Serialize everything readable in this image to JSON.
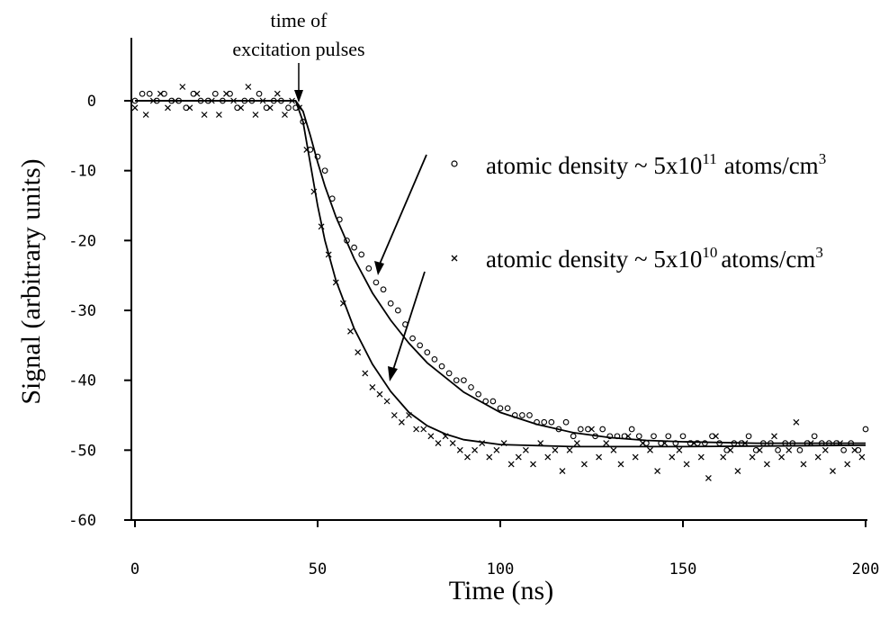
{
  "chart_data": {
    "type": "scatter",
    "title": "",
    "xlabel": "Time (ns)",
    "ylabel": "Signal (arbitrary units)",
    "xlim": [
      0,
      200
    ],
    "ylim": [
      -60,
      0
    ],
    "xticks": [
      "0",
      "50",
      "100",
      "150",
      "200"
    ],
    "yticks": [
      "0",
      "-10",
      "-20",
      "-30",
      "-40",
      "-50",
      "-60"
    ],
    "grid": false,
    "legend_position": "right",
    "annotation": {
      "line1": "time of",
      "line2": "excitation pulses",
      "x": 45,
      "y": 0
    },
    "legend": [
      {
        "marker": "circle",
        "base": "atomic density ~ 5x10",
        "exp": "11",
        "unit": "atoms/cm",
        "unit_exp": "3"
      },
      {
        "marker": "cross",
        "base": "atomic density ~ 5x10",
        "exp": "10",
        "unit": "atoms/cm",
        "unit_exp": "3"
      }
    ],
    "series": [
      {
        "marker": "circle",
        "x": [
          0,
          2,
          4,
          6,
          8,
          10,
          12,
          14,
          16,
          18,
          20,
          22,
          24,
          26,
          28,
          30,
          32,
          34,
          36,
          38,
          40,
          42,
          44,
          46,
          48,
          50,
          52,
          54,
          56,
          58,
          60,
          62,
          64,
          66,
          68,
          70,
          72,
          74,
          76,
          78,
          80,
          82,
          84,
          86,
          88,
          90,
          92,
          94,
          96,
          98,
          100,
          102,
          104,
          106,
          108,
          110,
          112,
          114,
          116,
          118,
          120,
          122,
          124,
          126,
          128,
          130,
          132,
          134,
          136,
          138,
          140,
          142,
          144,
          146,
          148,
          150,
          152,
          154,
          156,
          158,
          160,
          162,
          164,
          166,
          168,
          170,
          172,
          174,
          176,
          178,
          180,
          182,
          184,
          186,
          188,
          190,
          192,
          194,
          196,
          198,
          200
        ],
        "y": [
          0,
          1,
          1,
          0,
          1,
          0,
          0,
          -1,
          1,
          0,
          0,
          1,
          0,
          1,
          -1,
          0,
          0,
          1,
          -1,
          0,
          0,
          -1,
          -1,
          -3,
          -7,
          -8,
          -10,
          -14,
          -17,
          -20,
          -21,
          -22,
          -24,
          -26,
          -27,
          -29,
          -30,
          -32,
          -34,
          -35,
          -36,
          -37,
          -38,
          -39,
          -40,
          -40,
          -41,
          -42,
          -43,
          -43,
          -44,
          -44,
          -45,
          -45,
          -45,
          -46,
          -46,
          -46,
          -47,
          -46,
          -48,
          -47,
          -47,
          -48,
          -47,
          -48,
          -48,
          -48,
          -47,
          -48,
          -49,
          -48,
          -49,
          -48,
          -49,
          -48,
          -49,
          -49,
          -49,
          -48,
          -49,
          -50,
          -49,
          -49,
          -48,
          -50,
          -49,
          -49,
          -50,
          -49,
          -49,
          -50,
          -49,
          -48,
          -49,
          -49,
          -49,
          -50,
          -49,
          -50,
          -47
        ],
        "fit": [
          [
            0,
            0
          ],
          [
            44,
            0
          ],
          [
            46,
            -1.5
          ],
          [
            48,
            -5
          ],
          [
            50,
            -8.8
          ],
          [
            52,
            -12.2
          ],
          [
            55,
            -16.6
          ],
          [
            60,
            -22.6
          ],
          [
            65,
            -27.5
          ],
          [
            70,
            -31.4
          ],
          [
            75,
            -34.7
          ],
          [
            80,
            -37.5
          ],
          [
            90,
            -41.7
          ],
          [
            100,
            -44.6
          ],
          [
            110,
            -46.3
          ],
          [
            120,
            -47.5
          ],
          [
            130,
            -48.2
          ],
          [
            140,
            -48.6
          ],
          [
            150,
            -48.8
          ],
          [
            170,
            -49
          ],
          [
            200,
            -49
          ]
        ]
      },
      {
        "marker": "cross",
        "x": [
          0,
          3,
          5,
          7,
          9,
          11,
          13,
          15,
          17,
          19,
          21,
          23,
          25,
          27,
          29,
          31,
          33,
          35,
          37,
          39,
          41,
          43,
          45,
          47,
          49,
          51,
          53,
          55,
          57,
          59,
          61,
          63,
          65,
          67,
          69,
          71,
          73,
          75,
          77,
          79,
          81,
          83,
          85,
          87,
          89,
          91,
          93,
          95,
          97,
          99,
          101,
          103,
          105,
          107,
          109,
          111,
          113,
          115,
          117,
          119,
          121,
          123,
          125,
          127,
          129,
          131,
          133,
          135,
          137,
          139,
          141,
          143,
          145,
          147,
          149,
          151,
          153,
          155,
          157,
          159,
          161,
          163,
          165,
          167,
          169,
          171,
          173,
          175,
          177,
          179,
          181,
          183,
          185,
          187,
          189,
          191,
          193,
          195,
          197,
          199
        ],
        "y": [
          -1,
          -2,
          0,
          1,
          -1,
          0,
          2,
          -1,
          1,
          -2,
          0,
          -2,
          1,
          0,
          -1,
          2,
          -2,
          0,
          -1,
          1,
          -2,
          0,
          -1,
          -7,
          -13,
          -18,
          -22,
          -26,
          -29,
          -33,
          -36,
          -39,
          -41,
          -42,
          -43,
          -45,
          -46,
          -45,
          -47,
          -47,
          -48,
          -49,
          -48,
          -49,
          -50,
          -51,
          -50,
          -49,
          -51,
          -50,
          -49,
          -52,
          -51,
          -50,
          -52,
          -49,
          -51,
          -50,
          -53,
          -50,
          -49,
          -52,
          -47,
          -51,
          -49,
          -50,
          -52,
          -48,
          -51,
          -49,
          -50,
          -53,
          -49,
          -51,
          -50,
          -52,
          -49,
          -51,
          -54,
          -48,
          -51,
          -50,
          -53,
          -49,
          -51,
          -50,
          -52,
          -48,
          -51,
          -50,
          -46,
          -52,
          -49,
          -51,
          -50,
          -53,
          -49,
          -52,
          -50,
          -51
        ],
        "fit": [
          [
            0,
            0
          ],
          [
            44,
            0
          ],
          [
            46,
            -3
          ],
          [
            48,
            -9
          ],
          [
            50,
            -15
          ],
          [
            52,
            -20
          ],
          [
            55,
            -25.7
          ],
          [
            60,
            -32.6
          ],
          [
            65,
            -37.7
          ],
          [
            70,
            -41.6
          ],
          [
            75,
            -44.6
          ],
          [
            80,
            -46.5
          ],
          [
            85,
            -47.7
          ],
          [
            90,
            -48.5
          ],
          [
            100,
            -49.2
          ],
          [
            120,
            -49.5
          ],
          [
            150,
            -49.5
          ],
          [
            200,
            -49.3
          ]
        ]
      }
    ]
  }
}
